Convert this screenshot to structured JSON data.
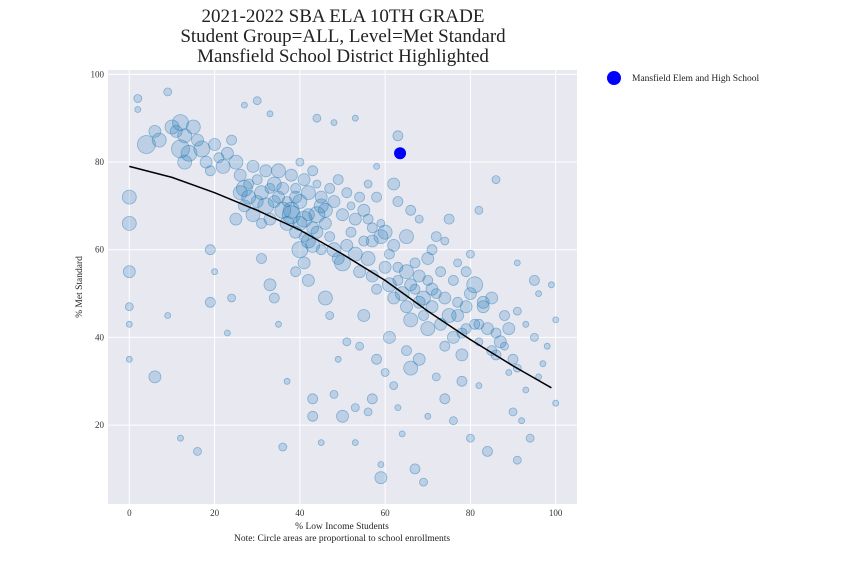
{
  "chart_data": {
    "type": "scatter",
    "title_lines": [
      "2021-2022 SBA ELA 10TH GRADE",
      "Student Group=ALL, Level=Met Standard",
      "Mansfield School District Highlighted"
    ],
    "xlabel": "% Low Income Students",
    "note": "Note: Circle areas are proportional to school enrollments",
    "ylabel": "% Met Standard",
    "xlim": [
      -5,
      105
    ],
    "ylim": [
      2,
      101
    ],
    "x_ticks": [
      0,
      20,
      40,
      60,
      80,
      100
    ],
    "y_ticks": [
      20,
      40,
      60,
      80,
      100
    ],
    "grid": true,
    "legend": {
      "placement": "outside-top-right",
      "entries": [
        "Mansfield Elem and High School"
      ]
    },
    "colors": {
      "background": "#e8e8f1",
      "points": "#1f77b4",
      "highlight": "#0000ff",
      "trend": "#000000",
      "grid": "#ffffff"
    },
    "highlight": {
      "name": "Mansfield Elem and High School",
      "x": 63.5,
      "y": 82,
      "r": 6
    },
    "trend_line": [
      [
        0,
        79
      ],
      [
        10,
        76.5
      ],
      [
        20,
        73
      ],
      [
        30,
        69
      ],
      [
        40,
        64.5
      ],
      [
        50,
        59
      ],
      [
        60,
        53
      ],
      [
        70,
        46
      ],
      [
        80,
        39.5
      ],
      [
        90,
        33.5
      ],
      [
        99,
        28.5
      ]
    ],
    "points": [
      [
        2,
        94.5,
        4
      ],
      [
        2,
        92,
        3
      ],
      [
        4,
        84,
        9
      ],
      [
        6,
        87,
        6
      ],
      [
        7,
        85,
        7
      ],
      [
        9,
        96,
        4
      ],
      [
        10,
        88,
        7
      ],
      [
        11,
        87,
        6
      ],
      [
        12,
        89,
        8
      ],
      [
        13,
        86,
        7
      ],
      [
        12,
        83,
        9
      ],
      [
        14,
        82,
        8
      ],
      [
        13,
        80,
        7
      ],
      [
        15,
        88,
        7
      ],
      [
        16,
        85,
        6
      ],
      [
        17,
        83,
        8
      ],
      [
        18,
        80,
        6
      ],
      [
        19,
        78,
        5
      ],
      [
        20,
        84,
        6
      ],
      [
        21,
        81,
        5
      ],
      [
        22,
        79,
        7
      ],
      [
        23,
        82,
        6
      ],
      [
        24,
        85,
        5
      ],
      [
        25,
        80,
        7
      ],
      [
        26,
        77,
        6
      ],
      [
        27,
        74,
        8
      ],
      [
        28,
        72,
        7
      ],
      [
        29,
        79,
        6
      ],
      [
        30,
        76,
        5
      ],
      [
        31,
        73,
        7
      ],
      [
        32,
        70,
        8
      ],
      [
        33,
        67,
        6
      ],
      [
        34,
        75,
        7
      ],
      [
        35,
        72,
        6
      ],
      [
        36,
        69,
        8
      ],
      [
        37,
        66,
        7
      ],
      [
        38,
        68,
        9
      ],
      [
        39,
        64,
        6
      ],
      [
        40,
        71,
        7
      ],
      [
        41,
        67,
        8
      ],
      [
        42,
        62,
        7
      ],
      [
        43,
        65,
        6
      ],
      [
        44,
        68,
        8
      ],
      [
        45,
        70,
        7
      ],
      [
        46,
        66,
        6
      ],
      [
        47,
        63,
        5
      ],
      [
        48,
        60,
        7
      ],
      [
        49,
        58,
        6
      ],
      [
        50,
        57,
        8
      ],
      [
        51,
        61,
        6
      ],
      [
        52,
        64,
        5
      ],
      [
        53,
        59,
        7
      ],
      [
        54,
        55,
        6
      ],
      [
        55,
        62,
        5
      ],
      [
        56,
        58,
        7
      ],
      [
        57,
        54,
        6
      ],
      [
        58,
        51,
        5
      ],
      [
        59,
        63,
        7
      ],
      [
        60,
        56,
        6
      ],
      [
        61,
        52,
        7
      ],
      [
        62,
        49,
        6
      ],
      [
        63,
        53,
        5
      ],
      [
        64,
        50,
        7
      ],
      [
        65,
        47,
        6
      ],
      [
        66,
        44,
        7
      ],
      [
        67,
        51,
        5
      ],
      [
        68,
        48,
        6
      ],
      [
        69,
        45,
        5
      ],
      [
        70,
        42,
        7
      ],
      [
        71,
        47,
        6
      ],
      [
        72,
        50,
        5
      ],
      [
        73,
        43,
        6
      ],
      [
        74,
        38,
        5
      ],
      [
        75,
        45,
        7
      ],
      [
        76,
        40,
        6
      ],
      [
        77,
        48,
        5
      ],
      [
        78,
        36,
        6
      ],
      [
        79,
        42,
        5
      ],
      [
        80,
        50,
        6
      ],
      [
        81,
        52,
        8
      ],
      [
        82,
        43,
        5
      ],
      [
        83,
        48,
        6
      ],
      [
        85,
        37,
        5
      ],
      [
        86,
        76,
        4
      ],
      [
        88,
        45,
        5
      ],
      [
        89,
        42,
        6
      ],
      [
        90,
        35,
        5
      ],
      [
        91,
        33,
        4
      ],
      [
        93,
        28,
        3
      ],
      [
        95,
        53,
        5
      ],
      [
        96,
        50,
        3
      ],
      [
        98,
        38,
        3
      ],
      [
        100,
        44,
        3
      ],
      [
        100,
        25,
        3
      ],
      [
        0,
        72,
        7
      ],
      [
        0,
        66,
        7
      ],
      [
        0,
        55,
        6
      ],
      [
        0,
        47,
        4
      ],
      [
        0,
        43,
        3
      ],
      [
        0,
        35,
        3
      ],
      [
        6,
        31,
        6
      ],
      [
        9,
        45,
        3
      ],
      [
        12,
        17,
        3
      ],
      [
        16,
        14,
        4
      ],
      [
        19,
        48,
        5
      ],
      [
        19,
        60,
        5
      ],
      [
        20,
        55,
        3
      ],
      [
        23,
        41,
        3
      ],
      [
        24,
        49,
        4
      ],
      [
        25,
        67,
        6
      ],
      [
        27,
        93,
        3
      ],
      [
        30,
        94,
        4
      ],
      [
        33,
        91,
        3
      ],
      [
        31,
        58,
        5
      ],
      [
        33,
        52,
        6
      ],
      [
        34,
        49,
        5
      ],
      [
        35,
        43,
        3
      ],
      [
        36,
        15,
        4
      ],
      [
        37,
        30,
        3
      ],
      [
        39,
        55,
        5
      ],
      [
        40,
        60,
        8
      ],
      [
        41,
        57,
        6
      ],
      [
        42,
        53,
        6
      ],
      [
        43,
        26,
        5
      ],
      [
        43,
        22,
        5
      ],
      [
        45,
        16,
        3
      ],
      [
        46,
        49,
        7
      ],
      [
        47,
        45,
        4
      ],
      [
        48,
        27,
        4
      ],
      [
        49,
        35,
        3
      ],
      [
        50,
        22,
        6
      ],
      [
        51,
        39,
        4
      ],
      [
        53,
        24,
        4
      ],
      [
        53,
        16,
        3
      ],
      [
        54,
        38,
        4
      ],
      [
        55,
        45,
        6
      ],
      [
        56,
        23,
        4
      ],
      [
        57,
        26,
        5
      ],
      [
        58,
        35,
        5
      ],
      [
        59,
        11,
        3
      ],
      [
        59,
        8,
        6
      ],
      [
        60,
        32,
        4
      ],
      [
        61,
        40,
        6
      ],
      [
        62,
        29,
        4
      ],
      [
        63,
        24,
        3
      ],
      [
        63,
        86,
        5
      ],
      [
        64,
        18,
        3
      ],
      [
        65,
        37,
        5
      ],
      [
        66,
        33,
        7
      ],
      [
        67,
        10,
        5
      ],
      [
        68,
        35,
        6
      ],
      [
        69,
        7,
        4
      ],
      [
        70,
        22,
        3
      ],
      [
        72,
        31,
        4
      ],
      [
        74,
        26,
        5
      ],
      [
        76,
        21,
        4
      ],
      [
        78,
        30,
        5
      ],
      [
        80,
        17,
        4
      ],
      [
        82,
        29,
        3
      ],
      [
        84,
        14,
        5
      ],
      [
        90,
        23,
        4
      ],
      [
        91,
        12,
        4
      ],
      [
        92,
        21,
        3
      ],
      [
        94,
        17,
        4
      ],
      [
        96,
        31,
        3
      ],
      [
        91,
        57,
        3
      ],
      [
        44,
        90,
        4
      ],
      [
        48,
        89,
        3
      ],
      [
        53,
        90,
        3
      ],
      [
        58,
        79,
        3
      ],
      [
        62,
        75,
        6
      ],
      [
        63,
        71,
        5
      ],
      [
        65,
        63,
        7
      ],
      [
        66,
        69,
        5
      ],
      [
        68,
        67,
        4
      ],
      [
        70,
        58,
        6
      ],
      [
        71,
        60,
        5
      ],
      [
        72,
        63,
        5
      ],
      [
        74,
        62,
        4
      ],
      [
        75,
        67,
        5
      ],
      [
        77,
        57,
        4
      ],
      [
        79,
        55,
        5
      ],
      [
        80,
        59,
        4
      ],
      [
        82,
        69,
        4
      ],
      [
        83,
        47,
        6
      ],
      [
        85,
        49,
        6
      ],
      [
        86,
        41,
        5
      ],
      [
        87,
        39,
        6
      ],
      [
        89,
        32,
        3
      ],
      [
        91,
        46,
        4
      ],
      [
        93,
        43,
        3
      ],
      [
        95,
        40,
        4
      ],
      [
        97,
        34,
        3
      ],
      [
        99,
        52,
        3
      ],
      [
        56,
        67,
        5
      ],
      [
        57,
        62,
        6
      ],
      [
        58,
        72,
        5
      ],
      [
        59,
        66,
        4
      ],
      [
        60,
        64,
        7
      ],
      [
        61,
        59,
        5
      ],
      [
        62,
        61,
        6
      ],
      [
        63,
        56,
        5
      ],
      [
        65,
        55,
        7
      ],
      [
        66,
        52,
        6
      ],
      [
        67,
        57,
        5
      ],
      [
        68,
        54,
        6
      ],
      [
        69,
        49,
        7
      ],
      [
        70,
        53,
        5
      ],
      [
        71,
        51,
        6
      ],
      [
        73,
        55,
        5
      ],
      [
        74,
        49,
        6
      ],
      [
        76,
        53,
        5
      ],
      [
        77,
        45,
        6
      ],
      [
        78,
        41,
        5
      ],
      [
        79,
        47,
        6
      ],
      [
        81,
        43,
        5
      ],
      [
        82,
        39,
        4
      ],
      [
        84,
        42,
        6
      ],
      [
        86,
        36,
        5
      ],
      [
        88,
        38,
        4
      ],
      [
        38,
        77,
        6
      ],
      [
        39,
        74,
        5
      ],
      [
        40,
        80,
        4
      ],
      [
        41,
        76,
        6
      ],
      [
        42,
        73,
        7
      ],
      [
        43,
        78,
        5
      ],
      [
        44,
        75,
        4
      ],
      [
        45,
        72,
        6
      ],
      [
        46,
        69,
        7
      ],
      [
        47,
        74,
        5
      ],
      [
        48,
        71,
        6
      ],
      [
        49,
        76,
        5
      ],
      [
        50,
        68,
        6
      ],
      [
        51,
        73,
        5
      ],
      [
        52,
        70,
        4
      ],
      [
        53,
        67,
        6
      ],
      [
        54,
        72,
        5
      ],
      [
        55,
        69,
        6
      ],
      [
        56,
        75,
        4
      ],
      [
        57,
        65,
        5
      ],
      [
        26,
        73,
        7
      ],
      [
        27,
        70,
        6
      ],
      [
        28,
        75,
        5
      ],
      [
        29,
        68,
        7
      ],
      [
        30,
        71,
        6
      ],
      [
        31,
        66,
        5
      ],
      [
        32,
        78,
        6
      ],
      [
        33,
        74,
        5
      ],
      [
        34,
        71,
        6
      ],
      [
        35,
        78,
        7
      ],
      [
        36,
        74,
        6
      ],
      [
        37,
        71,
        5
      ],
      [
        38,
        69,
        8
      ],
      [
        39,
        72,
        6
      ],
      [
        40,
        66,
        7
      ],
      [
        41,
        63,
        5
      ],
      [
        42,
        68,
        6
      ],
      [
        43,
        61,
        7
      ],
      [
        44,
        64,
        6
      ],
      [
        45,
        60,
        5
      ]
    ]
  }
}
